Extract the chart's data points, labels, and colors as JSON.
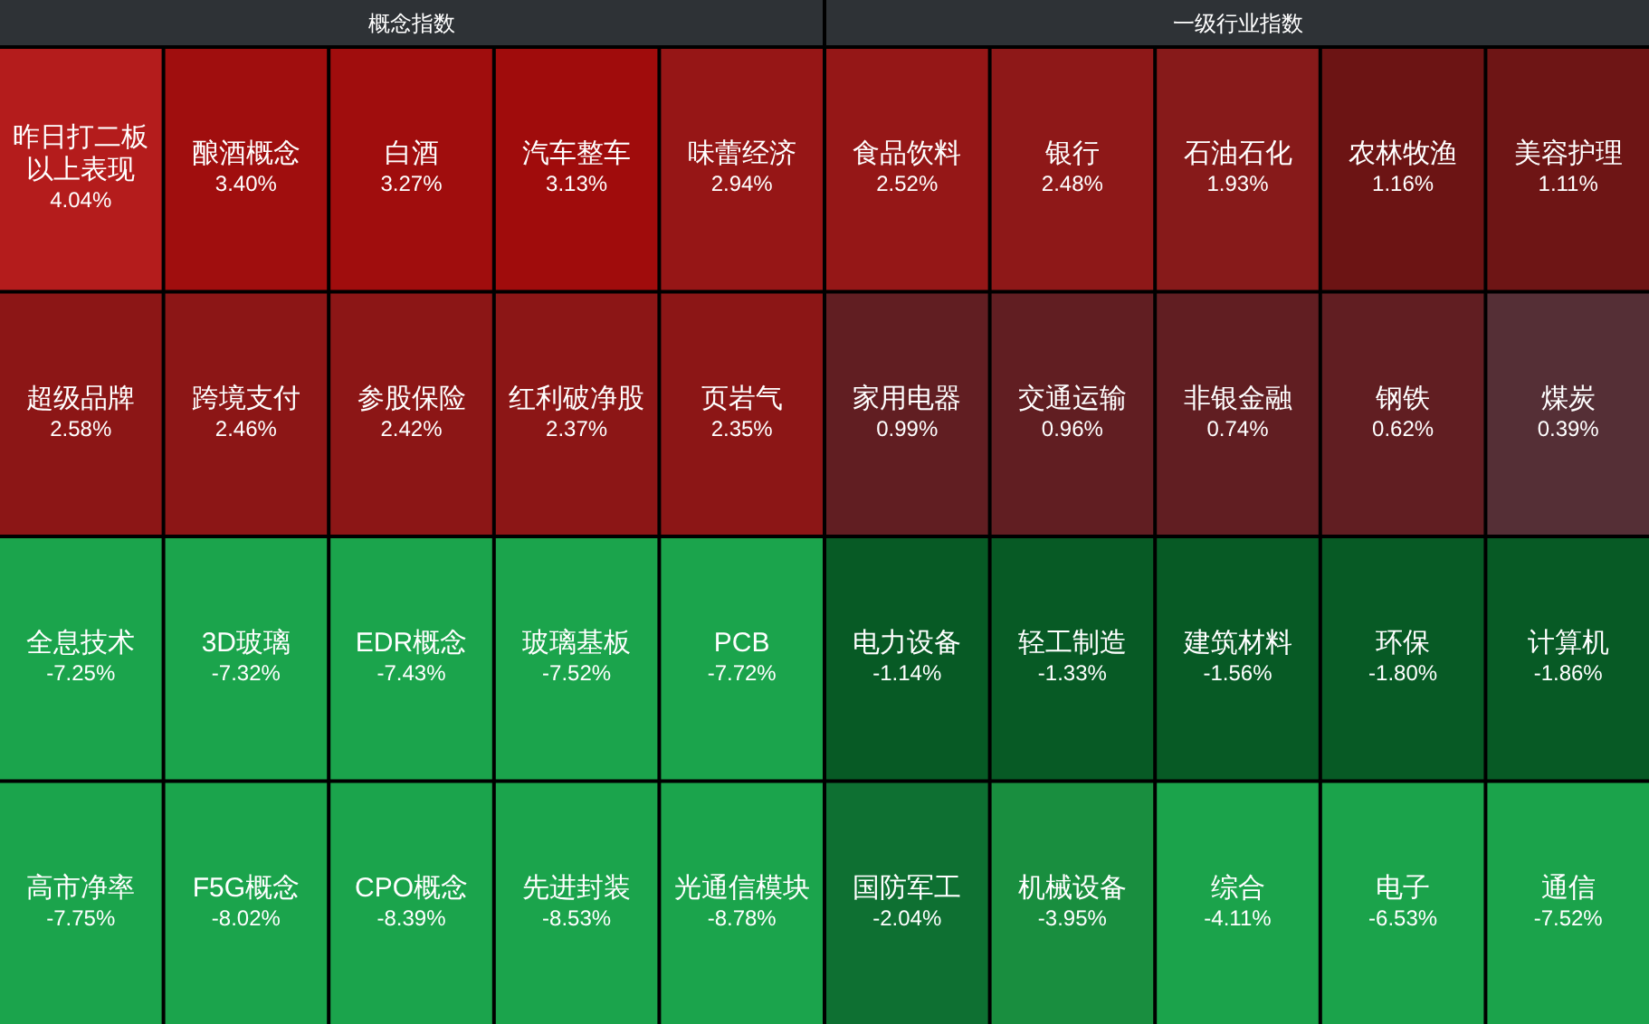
{
  "chart_data": [
    {
      "type": "other",
      "title": "概念指数",
      "categories": [
        "昨日打二板以上表现",
        "酿酒概念",
        "白酒",
        "汽车整车",
        "味蕾经济",
        "超级品牌",
        "跨境支付",
        "参股保险",
        "红利破净股",
        "页岩气",
        "全息技术",
        "3D玻璃",
        "EDR概念",
        "玻璃基板",
        "PCB",
        "高市净率",
        "F5G概念",
        "CPO概念",
        "先进封装",
        "光通信模块"
      ],
      "values": [
        4.04,
        3.4,
        3.27,
        3.13,
        2.94,
        2.58,
        2.46,
        2.42,
        2.37,
        2.35,
        -7.25,
        -7.32,
        -7.43,
        -7.52,
        -7.72,
        -7.75,
        -8.02,
        -8.39,
        -8.53,
        -8.78
      ],
      "value_labels": [
        "4.04%",
        "3.40%",
        "3.27%",
        "3.13%",
        "2.94%",
        "2.58%",
        "2.46%",
        "2.42%",
        "2.37%",
        "2.35%",
        "-7.25%",
        "-7.32%",
        "-7.43%",
        "-7.52%",
        "-7.72%",
        "-7.75%",
        "-8.02%",
        "-8.39%",
        "-8.53%",
        "-8.78%"
      ],
      "colors": [
        "#b41c1c",
        "#a00e0e",
        "#a00d0d",
        "#a00c0c",
        "#961616",
        "#8c1616",
        "#8c1616",
        "#8c1616",
        "#8c1616",
        "#8c1616",
        "#1ba44c",
        "#1ba44c",
        "#1ba44c",
        "#1ba44c",
        "#1ba44c",
        "#1ba44c",
        "#1ba44c",
        "#1ba44c",
        "#1ba44c",
        "#1ba44c"
      ]
    },
    {
      "type": "other",
      "title": "一级行业指数",
      "categories": [
        "食品饮料",
        "银行",
        "石油石化",
        "农林牧渔",
        "美容护理",
        "家用电器",
        "交通运输",
        "非银金融",
        "钢铁",
        "煤炭",
        "电力设备",
        "轻工制造",
        "建筑材料",
        "环保",
        "计算机",
        "国防军工",
        "机械设备",
        "综合",
        "电子",
        "通信"
      ],
      "values": [
        2.52,
        2.48,
        1.93,
        1.16,
        1.11,
        0.99,
        0.96,
        0.74,
        0.62,
        0.39,
        -1.14,
        -1.33,
        -1.56,
        -1.8,
        -1.86,
        -2.04,
        -3.95,
        -4.11,
        -6.53,
        -7.52
      ],
      "value_labels": [
        "2.52%",
        "2.48%",
        "1.93%",
        "1.16%",
        "1.11%",
        "0.99%",
        "0.96%",
        "0.74%",
        "0.62%",
        "0.39%",
        "-1.14%",
        "-1.33%",
        "-1.56%",
        "-1.80%",
        "-1.86%",
        "-2.04%",
        "-3.95%",
        "-4.11%",
        "-6.53%",
        "-7.52%"
      ],
      "colors": [
        "#951717",
        "#8e1818",
        "#871a1a",
        "#6c1414",
        "#6e1515",
        "#611e22",
        "#611e22",
        "#611e22",
        "#611e22",
        "#552f36",
        "#075a25",
        "#075a25",
        "#075a25",
        "#075a25",
        "#075a25",
        "#0e7032",
        "#198e3f",
        "#1ba34b",
        "#1ba34b",
        "#1ba34b"
      ]
    }
  ]
}
